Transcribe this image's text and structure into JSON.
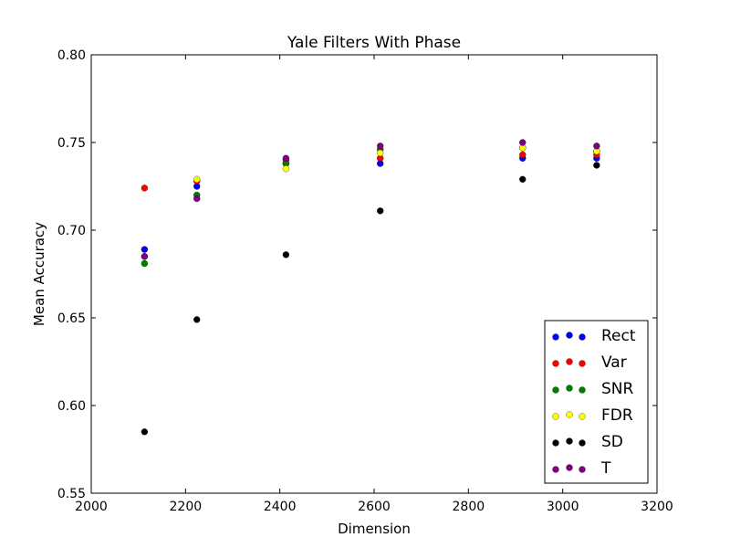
{
  "chart_data": {
    "type": "scatter",
    "title": "Yale Filters With Phase",
    "xlabel": "Dimension",
    "ylabel": "Mean Accuracy",
    "xlim": [
      2000,
      3200
    ],
    "ylim": [
      0.55,
      0.8
    ],
    "xticks": [
      2000,
      2200,
      2400,
      2600,
      2800,
      3000,
      3200
    ],
    "xtick_labels": [
      "2000",
      "2200",
      "2400",
      "2600",
      "2800",
      "3000",
      "3200"
    ],
    "yticks": [
      0.55,
      0.6,
      0.65,
      0.7,
      0.75,
      0.8
    ],
    "ytick_labels": [
      "0.55",
      "0.60",
      "0.65",
      "0.70",
      "0.75",
      "0.80"
    ],
    "grid": false,
    "legend_position": "lower right",
    "series": [
      {
        "name": "Rect",
        "color": "#0000ff",
        "points": [
          [
            2113,
            0.689
          ],
          [
            2224,
            0.725
          ],
          [
            2413,
            0.738
          ],
          [
            2613,
            0.738
          ],
          [
            2915,
            0.741
          ],
          [
            3072,
            0.741
          ]
        ]
      },
      {
        "name": "Var",
        "color": "#ff0000",
        "points": [
          [
            2113,
            0.724
          ],
          [
            2224,
            0.728
          ],
          [
            2413,
            0.74
          ],
          [
            2613,
            0.741
          ],
          [
            2915,
            0.743
          ],
          [
            3072,
            0.743
          ]
        ]
      },
      {
        "name": "SNR",
        "color": "#008000",
        "points": [
          [
            2113,
            0.681
          ],
          [
            2224,
            0.72
          ],
          [
            2413,
            0.738
          ],
          [
            2613,
            0.746
          ],
          [
            2915,
            0.747
          ],
          [
            3072,
            0.745
          ]
        ]
      },
      {
        "name": "FDR",
        "color": "#ffff00",
        "points": [
          [
            2113,
            0.685
          ],
          [
            2224,
            0.729
          ],
          [
            2413,
            0.735
          ],
          [
            2613,
            0.744
          ],
          [
            2915,
            0.747
          ],
          [
            3072,
            0.745
          ]
        ]
      },
      {
        "name": "SD",
        "color": "#000000",
        "points": [
          [
            2113,
            0.585
          ],
          [
            2224,
            0.649
          ],
          [
            2413,
            0.686
          ],
          [
            2613,
            0.711
          ],
          [
            2915,
            0.729
          ],
          [
            3072,
            0.737
          ]
        ]
      },
      {
        "name": "T",
        "color": "#800080",
        "points": [
          [
            2113,
            0.685
          ],
          [
            2224,
            0.718
          ],
          [
            2413,
            0.741
          ],
          [
            2613,
            0.748
          ],
          [
            2915,
            0.75
          ],
          [
            3072,
            0.748
          ]
        ]
      }
    ]
  }
}
